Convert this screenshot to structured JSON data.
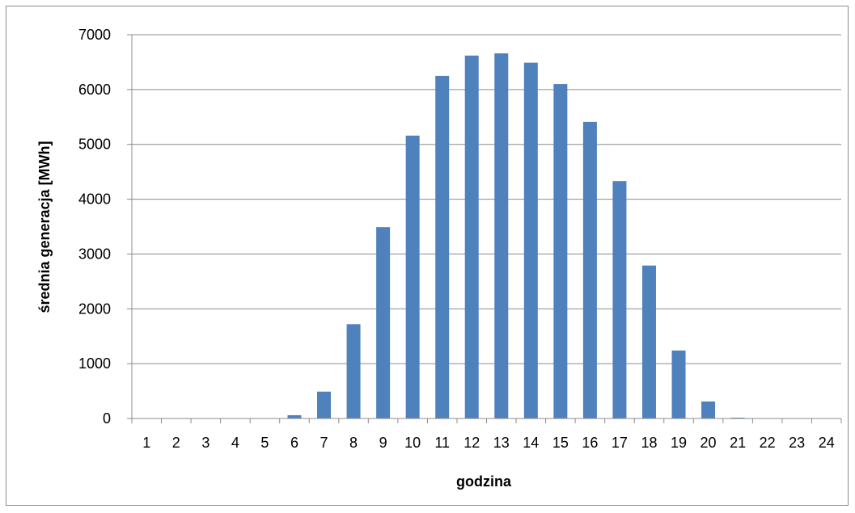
{
  "chart_data": {
    "type": "bar",
    "title": "",
    "xlabel": "godzina",
    "ylabel": "średnia generacja [MWh]",
    "categories": [
      "1",
      "2",
      "3",
      "4",
      "5",
      "6",
      "7",
      "8",
      "9",
      "10",
      "11",
      "12",
      "13",
      "14",
      "15",
      "16",
      "17",
      "18",
      "19",
      "20",
      "21",
      "22",
      "23",
      "24"
    ],
    "values": [
      0,
      0,
      0,
      0,
      0,
      60,
      490,
      1720,
      3490,
      5160,
      6250,
      6620,
      6660,
      6490,
      6100,
      5410,
      4330,
      2790,
      1240,
      310,
      15,
      0,
      0,
      0
    ],
    "ylim": [
      0,
      7000
    ],
    "yticks": [
      "0",
      "1000",
      "2000",
      "3000",
      "4000",
      "5000",
      "6000",
      "7000"
    ],
    "grid": true,
    "legend": "none",
    "bar_color": "#4F81BD",
    "grid_color": "#8c8c8c"
  }
}
